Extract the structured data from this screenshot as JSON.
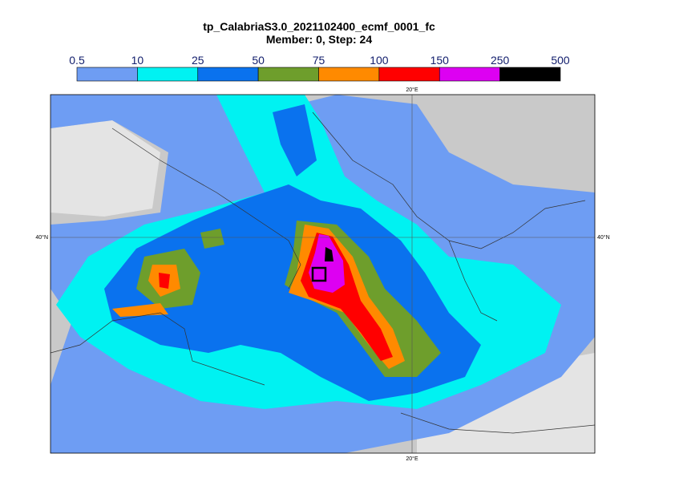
{
  "title": "tp_CalabriaS3.0_2021102400_ecmf_0001_fc",
  "subtitle": "Member: 0, Step: 24",
  "legend": {
    "levels": [
      0.5,
      10,
      25,
      50,
      75,
      100,
      150,
      250,
      500
    ],
    "colors": [
      "#6e9df3",
      "#00f2f2",
      "#0a72ee",
      "#6e9e2c",
      "#ff8a00",
      "#ff0000",
      "#dd00f2",
      "#000000"
    ]
  },
  "graticule": {
    "lon_label": "20°E",
    "lat_label": "40°N"
  }
}
